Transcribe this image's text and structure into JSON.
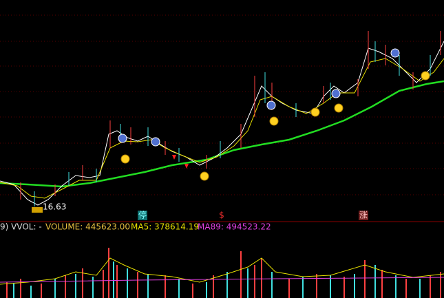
{
  "price_panel": {
    "low_label": "16.63",
    "markers": [
      "停",
      "$",
      "涨"
    ]
  },
  "volume_panel": {
    "indicator": "9) VVOL: -",
    "volume": "VOLUME: 445623.00",
    "ma5": "MA5: 378614.19",
    "ma89": "MA89: 494523.22"
  }
}
